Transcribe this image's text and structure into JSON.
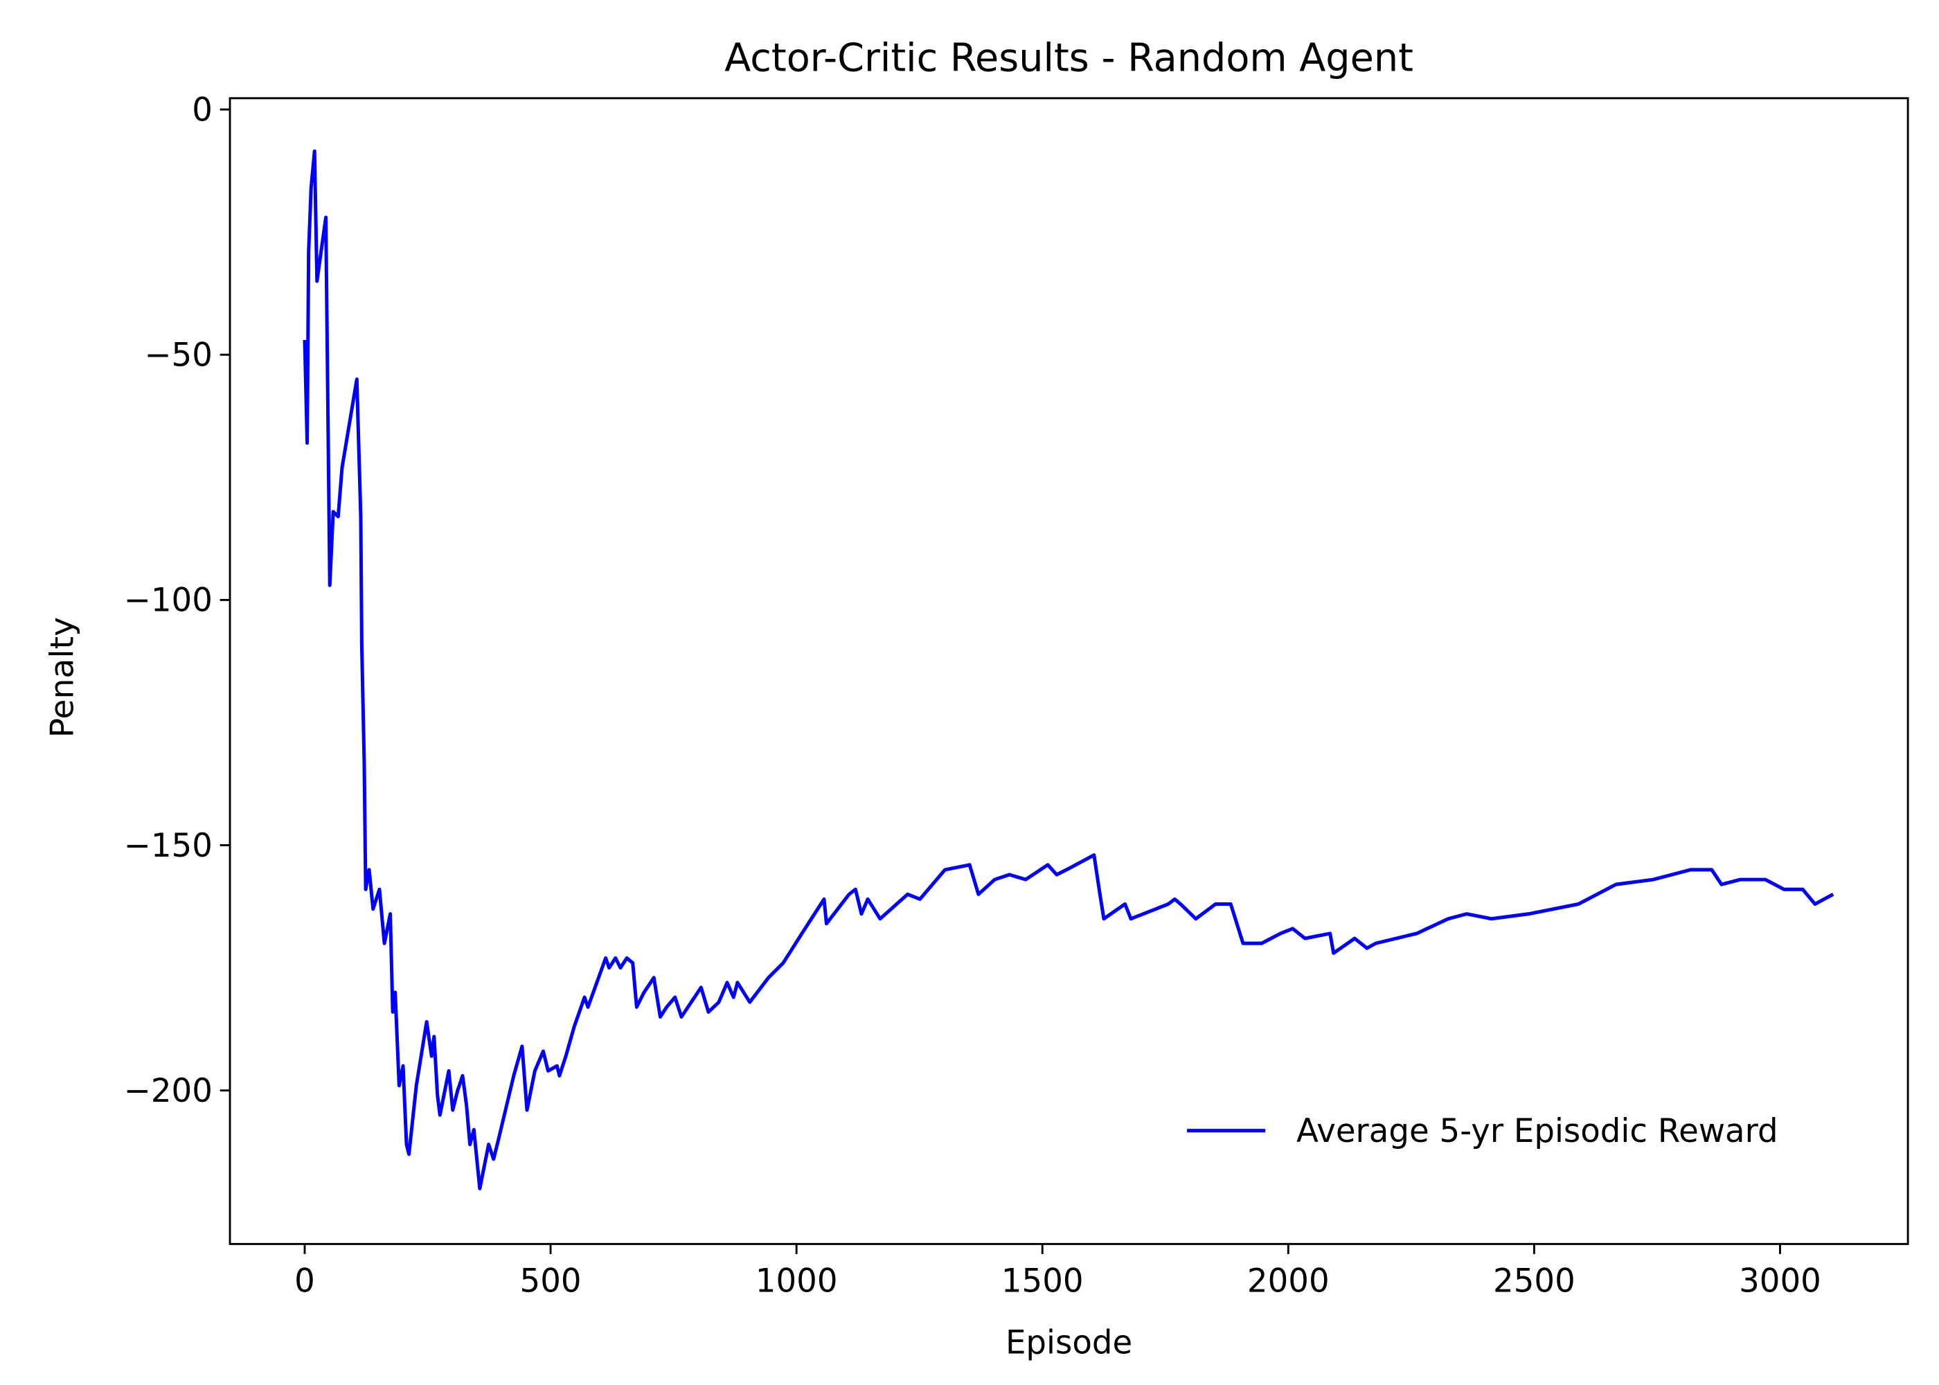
{
  "chart_data": {
    "type": "line",
    "title": "Actor-Critic Results - Random Agent",
    "x_label": "Episode",
    "y_label": "Penalty",
    "xlim": [
      -152,
      3260
    ],
    "ylim": [
      -231.3,
      2.3
    ],
    "xticks": [
      0,
      500,
      1000,
      1500,
      2000,
      2500,
      3000
    ],
    "yticks": [
      0,
      {
        "value": -50,
        "label": "−50"
      },
      {
        "value": -100,
        "label": "−100"
      },
      {
        "value": -150,
        "label": "−150"
      },
      {
        "value": -200,
        "label": "−200"
      }
    ],
    "legend": "lower right",
    "grid": false,
    "series": [
      {
        "name": "Average 5-yr Episodic Reward",
        "color": "#0000ff",
        "x": [
          0,
          5,
          8,
          13,
          20,
          25,
          43,
          51,
          58,
          68,
          76,
          106,
          114,
          116,
          121,
          124,
          131,
          139,
          152,
          162,
          174,
          179,
          184,
          192,
          200,
          207,
          212,
          227,
          248,
          258,
          263,
          270,
          275,
          293,
          301,
          311,
          321,
          329,
          336,
          344,
          356,
          374,
          384,
          394,
          425,
          442,
          452,
          468,
          485,
          495,
          513,
          518,
          531,
          548,
          569,
          576,
          594,
          612,
          619,
          632,
          642,
          655,
          667,
          675,
          690,
          710,
          723,
          736,
          753,
          766,
          786,
          806,
          821,
          842,
          859,
          872,
          880,
          905,
          943,
          973,
          1011,
          1056,
          1061,
          1107,
          1120,
          1132,
          1145,
          1170,
          1226,
          1251,
          1302,
          1352,
          1370,
          1403,
          1433,
          1466,
          1511,
          1529,
          1549,
          1605,
          1617,
          1625,
          1668,
          1680,
          1756,
          1769,
          1781,
          1812,
          1852,
          1883,
          1908,
          1946,
          1984,
          2009,
          2034,
          2085,
          2092,
          2135,
          2160,
          2178,
          2261,
          2325,
          2363,
          2413,
          2489,
          2590,
          2666,
          2742,
          2818,
          2861,
          2881,
          2919,
          2970,
          3008,
          3046,
          3071,
          3108
        ],
        "values": [
          -47,
          -68,
          -29,
          -16,
          -8.5,
          -35,
          -22,
          -97,
          -82,
          -83,
          -73,
          -55,
          -83,
          -109,
          -133,
          -159,
          -155,
          -163,
          -159,
          -170,
          -164,
          -184,
          -180,
          -199,
          -195,
          -211,
          -213,
          -199,
          -186,
          -193,
          -189,
          -201,
          -205,
          -196,
          -204,
          -200,
          -197,
          -203,
          -211,
          -208,
          -220,
          -211,
          -214,
          -210,
          -197,
          -191,
          -204,
          -196,
          -192,
          -196,
          -195,
          -197,
          -193,
          -187,
          -181,
          -183,
          -178,
          -173,
          -175,
          -173,
          -175,
          -173,
          -174,
          -183,
          -180,
          -177,
          -185,
          -183,
          -181,
          -185,
          -182,
          -179,
          -184,
          -182,
          -178,
          -181,
          -178,
          -182,
          -177,
          -174,
          -168,
          -161,
          -166,
          -160,
          -159,
          -164,
          -161,
          -165,
          -160,
          -161,
          -155,
          -154,
          -160,
          -157,
          -156,
          -157,
          -154,
          -156,
          -155,
          -152,
          -160,
          -165,
          -162,
          -165,
          -162,
          -161,
          -162,
          -165,
          -162,
          -162,
          -170,
          -170,
          -168,
          -167,
          -169,
          -168,
          -172,
          -169,
          -171,
          -170,
          -168,
          -165,
          -164,
          -165,
          -164,
          -162,
          -158,
          -157,
          -155,
          -155,
          -158,
          -157,
          -157,
          -159,
          -159,
          -162,
          -160
        ]
      }
    ]
  }
}
